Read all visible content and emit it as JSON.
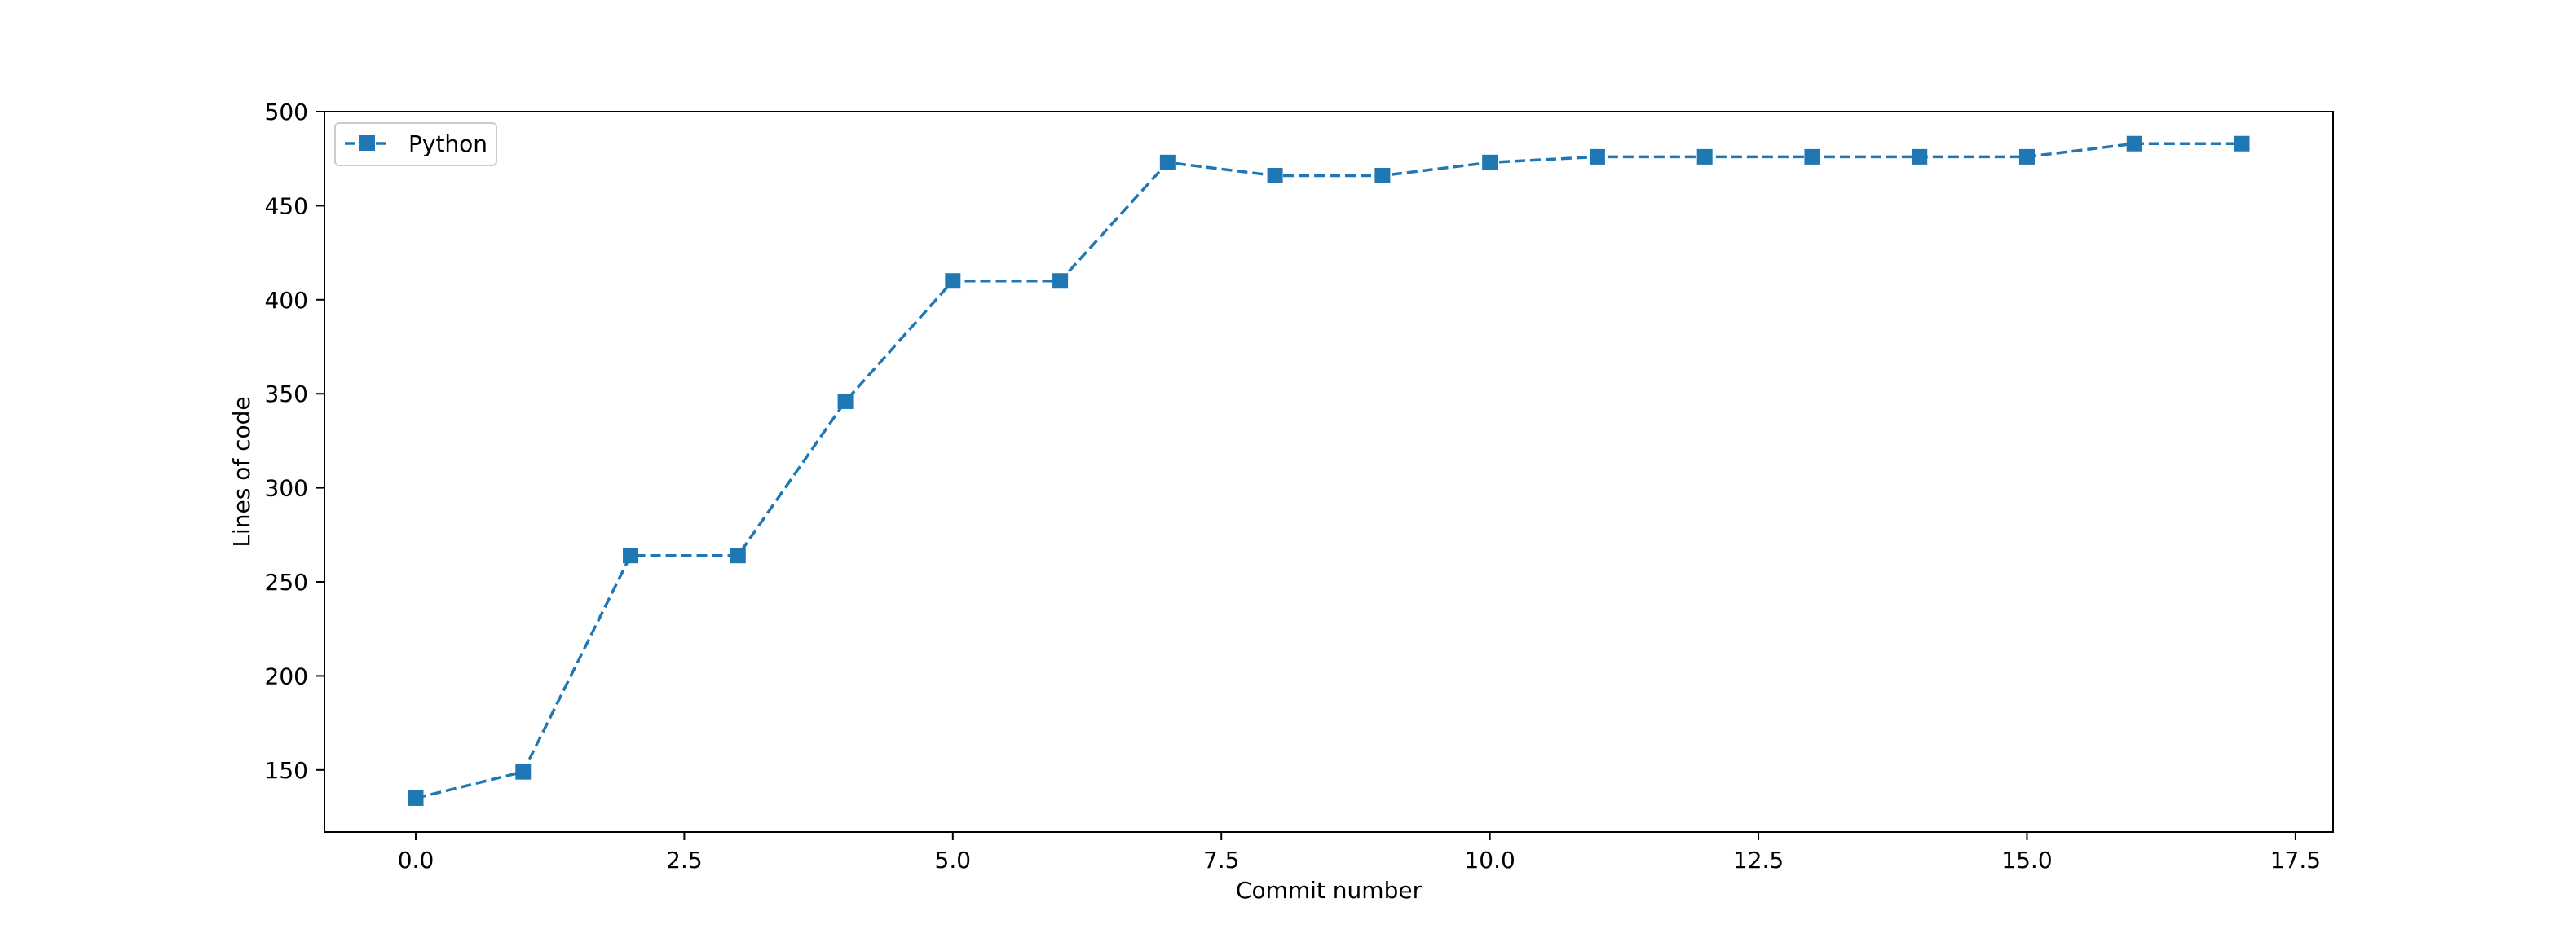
{
  "chart_data": {
    "type": "line",
    "title": "",
    "xlabel": "Commit number",
    "ylabel": "Lines of code",
    "xlim": [
      -0.85,
      17.85
    ],
    "ylim": [
      117,
      500
    ],
    "xticks": [
      0.0,
      2.5,
      5.0,
      7.5,
      10.0,
      12.5,
      15.0,
      17.5
    ],
    "xtick_labels": [
      "0.0",
      "2.5",
      "5.0",
      "7.5",
      "10.0",
      "12.5",
      "15.0",
      "17.5"
    ],
    "yticks": [
      150,
      200,
      250,
      300,
      350,
      400,
      450,
      500
    ],
    "ytick_labels": [
      "150",
      "200",
      "250",
      "300",
      "350",
      "400",
      "450",
      "500"
    ],
    "grid": false,
    "legend_position": "top-left",
    "series": [
      {
        "name": "Python",
        "color": "#1f77b4",
        "line_style": "dashed",
        "marker": "square",
        "x": [
          0,
          1,
          2,
          3,
          4,
          5,
          6,
          7,
          8,
          9,
          10,
          11,
          12,
          13,
          14,
          15,
          16,
          17
        ],
        "values": [
          135,
          149,
          264,
          264,
          346,
          410,
          410,
          473,
          466,
          466,
          473,
          476,
          476,
          476,
          476,
          476,
          483,
          483
        ]
      }
    ]
  }
}
